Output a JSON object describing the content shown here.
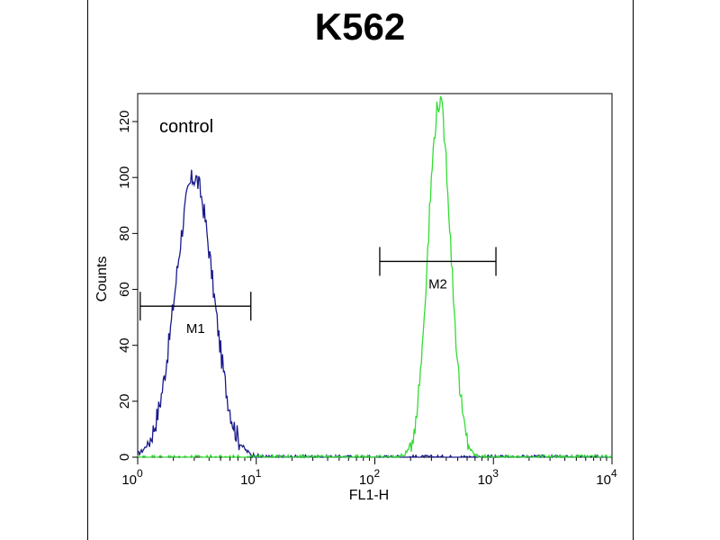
{
  "chart_data": {
    "type": "line",
    "title": "K562",
    "annotation": "control",
    "xlabel": "FL1-H",
    "ylabel": "Counts",
    "xscale": "log",
    "xlim": [
      1,
      10000
    ],
    "ylim": [
      0,
      130
    ],
    "yticks": [
      0,
      20,
      40,
      60,
      80,
      100,
      120
    ],
    "xticks": [
      {
        "value": 1,
        "base": "10",
        "exp": "0"
      },
      {
        "value": 10,
        "base": "10",
        "exp": "1"
      },
      {
        "value": 100,
        "base": "10",
        "exp": "2"
      },
      {
        "value": 1000,
        "base": "10",
        "exp": "3"
      },
      {
        "value": 10000,
        "base": "10",
        "exp": "4"
      }
    ],
    "series": [
      {
        "color": "#1a1a8c",
        "center": 3.0,
        "peak": 100,
        "log_sigma": 0.16
      },
      {
        "color": "#33dd33",
        "center": 350,
        "peak": 127,
        "log_sigma": 0.095
      }
    ],
    "markers": [
      {
        "label": "M1",
        "x_start": 1.05,
        "x_end": 9.0,
        "y": 54
      },
      {
        "label": "M2",
        "x_start": 110,
        "x_end": 1050,
        "y": 70
      }
    ]
  }
}
